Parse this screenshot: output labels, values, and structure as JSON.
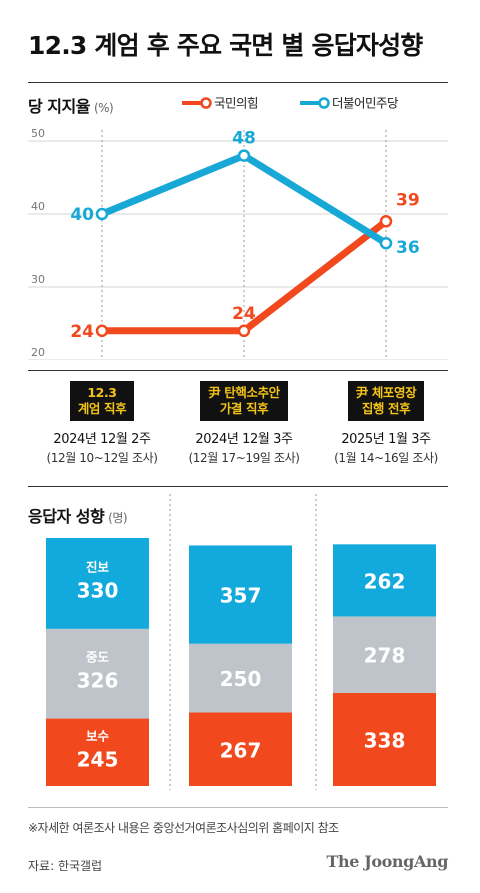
{
  "title": "12.3 계엄 후 주요 국면 별 응답자성향",
  "support_section": {
    "title": "당 지지율",
    "unit": "(%)"
  },
  "tendency_section": {
    "title": "응답자 성향",
    "unit": "(명)"
  },
  "events": [
    {
      "tag_lines": [
        "12.3",
        "계엄 직후"
      ],
      "date": "2024년 12월 2주",
      "range": "(12월 10~12일 조사)"
    },
    {
      "tag_lines": [
        "尹 탄핵소추안",
        "가결 직후"
      ],
      "date": "2024년 12월 3주",
      "range": "(12월 17~19일 조사)"
    },
    {
      "tag_lines": [
        "尹 체포영장",
        "집행 전후"
      ],
      "date": "2025년 1월 3주",
      "range": "(1월 14~16일 조사)"
    }
  ],
  "footnote": "※자세한 여론조사 내용은 중앙선거여론조사심의위 홈페이지 참조",
  "source": "자료: 한국갤럽",
  "brand": "The JoongAng",
  "colors": {
    "ppp": "#f2481d",
    "dem": "#17a8d6",
    "progressive": "#12a9dc",
    "moderate": "#bec4ca",
    "conservative": "#f2481d"
  },
  "chart_data": [
    {
      "type": "line",
      "categories": [
        "2024년 12월 2주",
        "2024년 12월 3주",
        "2025년 1월 3주"
      ],
      "ylim": [
        20,
        50
      ],
      "yticks": [
        "20",
        "30",
        "40",
        "50"
      ],
      "legend": "top-right",
      "series": [
        {
          "name": "국민의힘",
          "values": [
            24,
            24,
            39
          ]
        },
        {
          "name": "더불어민주당",
          "values": [
            40,
            48,
            36
          ]
        }
      ]
    },
    {
      "type": "bar",
      "stacked": true,
      "categories": [
        "2024년 12월 2주",
        "2024년 12월 3주",
        "2025년 1월 3주"
      ],
      "series": [
        {
          "name": "진보",
          "values": [
            330,
            357,
            262
          ]
        },
        {
          "name": "중도",
          "values": [
            326,
            250,
            278
          ]
        },
        {
          "name": "보수",
          "values": [
            245,
            267,
            338
          ]
        }
      ]
    }
  ]
}
